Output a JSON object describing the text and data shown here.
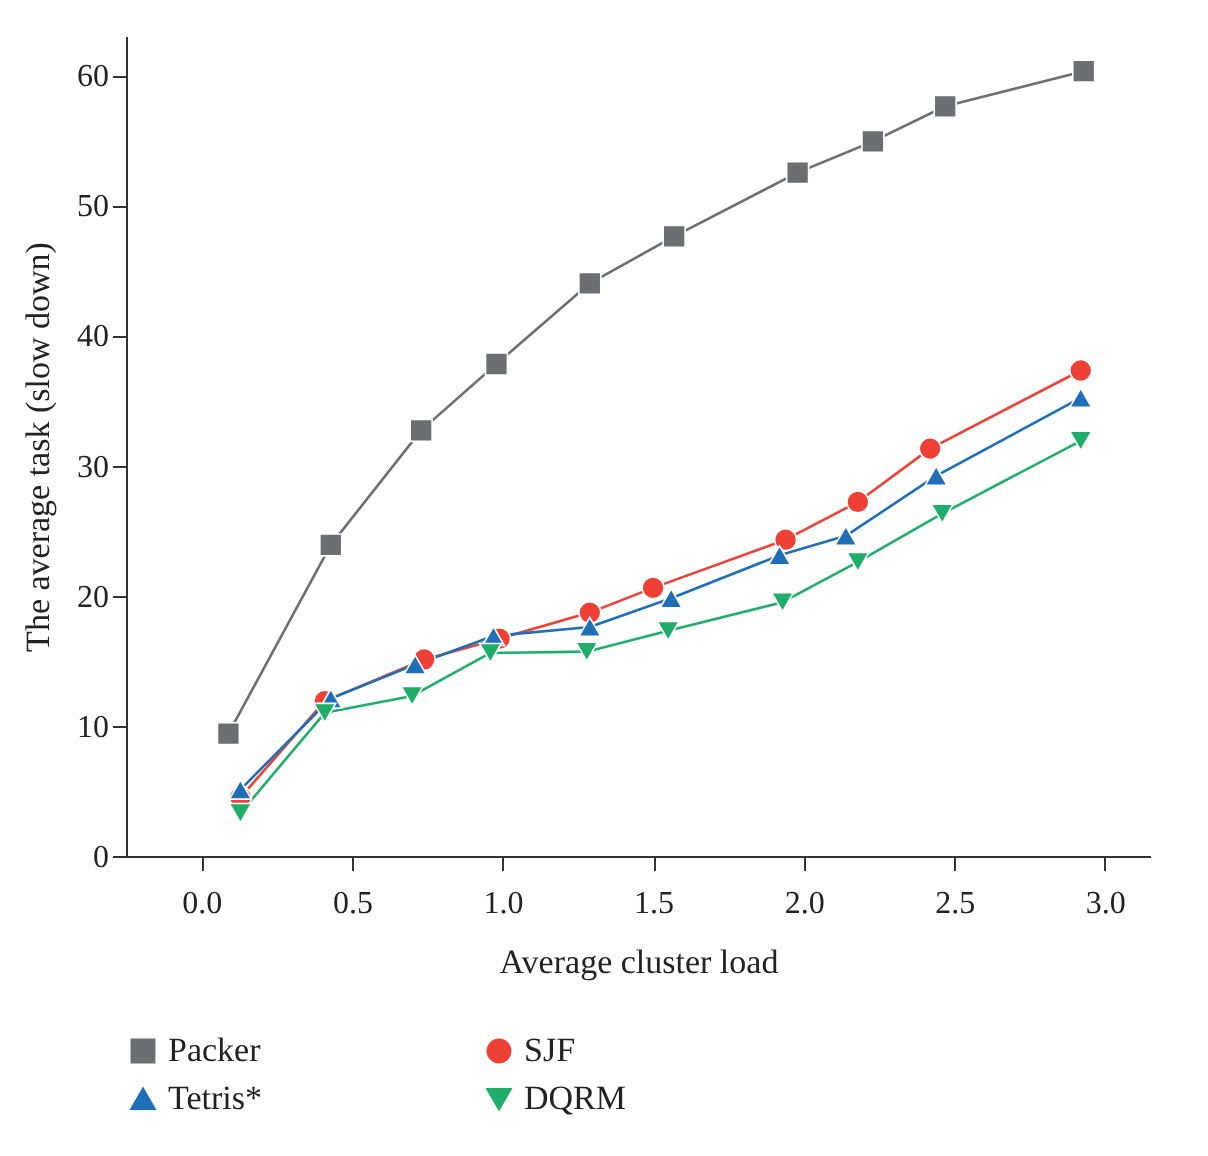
{
  "chart_data": {
    "type": "line",
    "xlabel": "Average cluster load",
    "ylabel": "The average task (slow down)",
    "xlim": [
      -0.25,
      3.15
    ],
    "xticks": [
      {
        "value": 0,
        "label": "0.0"
      },
      0.5,
      {
        "value": 1,
        "label": "1.0"
      },
      1.5,
      {
        "value": 2,
        "label": "2.0"
      },
      2.5,
      {
        "value": 3,
        "label": "3.0"
      }
    ],
    "ylim": [
      0,
      63
    ],
    "yticks": [
      0,
      10,
      20,
      30,
      40,
      50,
      60
    ],
    "grid": false,
    "legend": "bottom",
    "series": [
      {
        "name": "Packer",
        "color": "#6d6e71",
        "marker": "square",
        "x": [
          0.09,
          0.43,
          0.73,
          0.98,
          1.29,
          1.57,
          1.98,
          2.23,
          2.47,
          2.93
        ],
        "values": [
          9.4,
          23.9,
          32.7,
          37.8,
          44.0,
          47.6,
          52.5,
          54.9,
          57.6,
          60.3
        ]
      },
      {
        "name": "SJF",
        "color": "#ee4035",
        "marker": "circle",
        "x": [
          0.13,
          0.41,
          0.74,
          0.99,
          1.29,
          1.5,
          1.94,
          2.18,
          2.42,
          2.92
        ],
        "values": [
          4.5,
          11.9,
          15.1,
          16.7,
          18.7,
          20.6,
          24.3,
          27.2,
          31.3,
          37.3
        ]
      },
      {
        "name": "Tetris*",
        "color": "#1f6fb8",
        "marker": "triangle",
        "x": [
          0.13,
          0.43,
          0.71,
          0.97,
          1.29,
          1.56,
          1.92,
          2.14,
          2.44,
          2.92
        ],
        "values": [
          5.1,
          12.1,
          14.7,
          16.9,
          17.6,
          19.8,
          23.1,
          24.6,
          29.2,
          35.2
        ]
      },
      {
        "name": "DQRM",
        "color": "#1fad6a",
        "marker": "triangle-down",
        "x": [
          0.13,
          0.41,
          0.7,
          0.96,
          1.28,
          1.55,
          1.93,
          2.18,
          2.46,
          2.92
        ],
        "values": [
          3.3,
          11.0,
          12.3,
          15.6,
          15.7,
          17.3,
          19.5,
          22.6,
          26.3,
          31.9
        ]
      }
    ]
  }
}
